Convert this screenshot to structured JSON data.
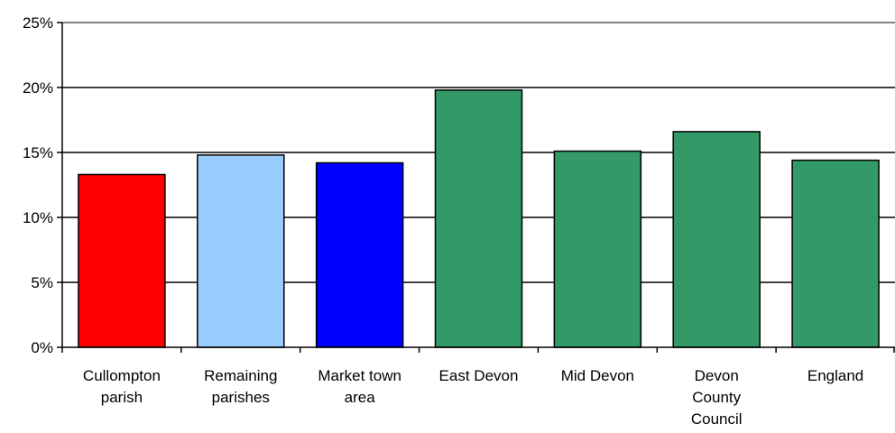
{
  "chart_data": {
    "type": "bar",
    "categories": [
      [
        "Cullompton",
        "parish"
      ],
      [
        "Remaining",
        "parishes"
      ],
      [
        "Market town",
        "area"
      ],
      [
        "East Devon"
      ],
      [
        "Mid Devon"
      ],
      [
        "Devon",
        "County",
        "Council"
      ],
      [
        "England"
      ]
    ],
    "values": [
      13.3,
      14.8,
      14.2,
      19.8,
      15.1,
      16.6,
      14.4
    ],
    "colors": [
      "#ff0000",
      "#99ccff",
      "#0000ff",
      "#339966",
      "#339966",
      "#339966",
      "#339966"
    ],
    "ylim": [
      0,
      25
    ],
    "yticks": [
      0,
      5,
      10,
      15,
      20,
      25
    ],
    "ytick_labels": [
      "0%",
      "5%",
      "10%",
      "15%",
      "20%",
      "25%"
    ],
    "gridlines": true,
    "title": "",
    "xlabel": "",
    "ylabel": ""
  }
}
